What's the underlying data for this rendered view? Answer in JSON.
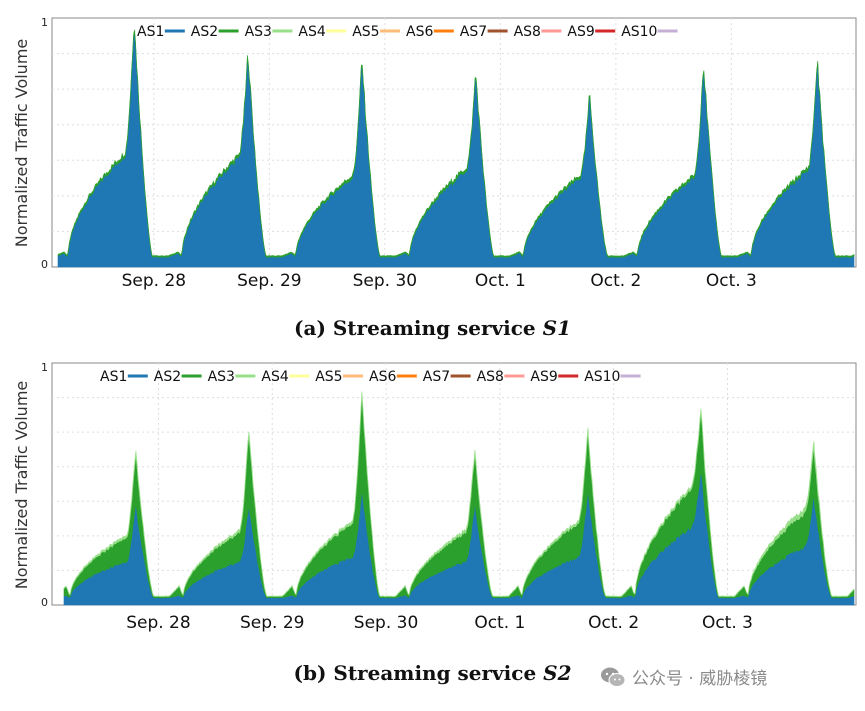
{
  "colors": {
    "AS1": "#1f77b4",
    "AS2": "#2ca02c",
    "AS3": "#98df8a",
    "AS4": "#ffff99",
    "AS5": "#ffbb78",
    "AS6": "#ff7f0e",
    "AS7": "#a0522d",
    "AS8": "#ff9896",
    "AS9": "#d62728",
    "AS10": "#c5b0d5",
    "grid": "#dddddd",
    "axis": "#888888"
  },
  "watermark": {
    "text": "公众号 · 威胁棱镜",
    "icon": "wechat-icon"
  },
  "chart_data": [
    {
      "type": "area",
      "stacked": true,
      "caption_prefix": "(a) Streaming service ",
      "caption_italic": "S1",
      "ylabel": "Normalized Traffic Volume",
      "xlabel": "",
      "ylim": [
        0,
        1
      ],
      "y_ticks": [
        "0",
        "1"
      ],
      "x_ticks": [
        "Sep. 28",
        "Sep. 29",
        "Sep. 30",
        "Oct. 1",
        "Oct. 2",
        "Oct. 3"
      ],
      "legend": [
        "AS1",
        "AS2",
        "AS3",
        "AS4",
        "AS5",
        "AS6",
        "AS7",
        "AS8",
        "AS9",
        "AS10"
      ],
      "legend_position": "top",
      "grid": true,
      "series": [
        {
          "name": "AS1",
          "day_peaks": [
            1.0,
            0.86,
            0.83,
            0.78,
            0.69,
            0.82,
            0.83
          ],
          "shoulder": [
            0.45,
            0.44,
            0.36,
            0.39,
            0.36,
            0.36,
            0.39
          ],
          "trough": 0.04,
          "dip": 0.03
        },
        {
          "name": "AS2",
          "day_peaks": [
            0.01,
            0.01,
            0.01,
            0.01,
            0.01,
            0.01,
            0.01
          ],
          "shoulder": [
            0.01,
            0.01,
            0.01,
            0.01,
            0.01,
            0.01,
            0.01
          ],
          "trough": 0.005,
          "dip": 0.0
        }
      ]
    },
    {
      "type": "area",
      "stacked": true,
      "caption_prefix": "(b) Streaming service ",
      "caption_italic": "S2",
      "ylabel": "Normalized Traffic Volume",
      "xlabel": "",
      "ylim": [
        0,
        1
      ],
      "y_ticks": [
        "0",
        "1"
      ],
      "x_ticks": [
        "Sep. 28",
        "Sep. 29",
        "Sep. 30",
        "Oct. 1",
        "Oct. 2",
        "Oct. 3"
      ],
      "legend": [
        "AS1",
        "AS2",
        "AS3",
        "AS4",
        "AS5",
        "AS6",
        "AS7",
        "AS8",
        "AS9",
        "AS10"
      ],
      "legend_position": "top",
      "grid": true,
      "series": [
        {
          "name": "AS1",
          "day_peaks": [
            0.42,
            0.42,
            0.48,
            0.42,
            0.48,
            0.57,
            0.45
          ],
          "shoulder": [
            0.18,
            0.18,
            0.2,
            0.18,
            0.2,
            0.32,
            0.24
          ],
          "trough": 0.03,
          "dip": 0.02
        },
        {
          "name": "AS2",
          "day_peaks": [
            0.21,
            0.3,
            0.4,
            0.21,
            0.24,
            0.24,
            0.2
          ],
          "shoulder": [
            0.1,
            0.12,
            0.14,
            0.12,
            0.14,
            0.16,
            0.14
          ],
          "trough": 0.005,
          "dip": 0.06
        },
        {
          "name": "AS3",
          "day_peaks": [
            0.02,
            0.02,
            0.02,
            0.02,
            0.02,
            0.02,
            0.03
          ],
          "shoulder": [
            0.01,
            0.01,
            0.01,
            0.01,
            0.01,
            0.01,
            0.02
          ],
          "trough": 0.002,
          "dip": 0.0
        }
      ]
    }
  ]
}
